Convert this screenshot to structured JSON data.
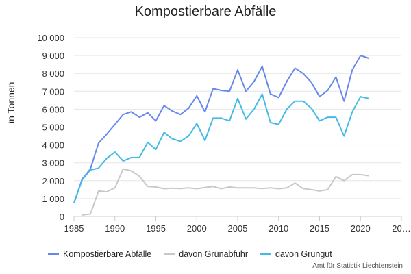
{
  "chart_data": {
    "type": "line",
    "title": "Kompostierbare Abfälle",
    "xlabel": "",
    "ylabel": "in Tonnen",
    "xlim": [
      1985,
      2025
    ],
    "ylim": [
      0,
      10000
    ],
    "x_ticks": [
      "1985",
      "1990",
      "1995",
      "2000",
      "2005",
      "2010",
      "2015",
      "2020",
      "20…"
    ],
    "y_ticks": [
      "0",
      "1 000",
      "2 000",
      "3 000",
      "4 000",
      "5 000",
      "6 000",
      "7 000",
      "8 000",
      "9 000",
      "10 000"
    ],
    "grid": true,
    "legend_position": "bottom-left",
    "series": [
      {
        "name": "Kompostierbare Abfälle",
        "color": "#6688ee",
        "x": [
          1985,
          1986,
          1987,
          1988,
          1989,
          1990,
          1991,
          1992,
          1993,
          1994,
          1995,
          1996,
          1997,
          1998,
          1999,
          2000,
          2001,
          2002,
          2003,
          2004,
          2005,
          2006,
          2007,
          2008,
          2009,
          2010,
          2011,
          2012,
          2013,
          2014,
          2015,
          2016,
          2017,
          2018,
          2019,
          2020,
          2021
        ],
        "values": [
          750,
          2100,
          2650,
          4100,
          4600,
          5150,
          5700,
          5850,
          5550,
          5800,
          5350,
          6200,
          5900,
          5700,
          6050,
          6750,
          5850,
          7150,
          7050,
          7000,
          8200,
          7000,
          7550,
          8400,
          6850,
          6650,
          7550,
          8300,
          8000,
          7500,
          6700,
          7050,
          7800,
          6450,
          8200,
          9000,
          8850
        ]
      },
      {
        "name": "davon Grünabfuhr",
        "color": "#c8c8c8",
        "x": [
          1986,
          1987,
          1988,
          1989,
          1990,
          1991,
          1992,
          1993,
          1994,
          1995,
          1996,
          1997,
          1998,
          1999,
          2000,
          2001,
          2002,
          2003,
          2004,
          2005,
          2006,
          2007,
          2008,
          2009,
          2010,
          2011,
          2012,
          2013,
          2014,
          2015,
          2016,
          2017,
          2018,
          2019,
          2020,
          2021
        ],
        "values": [
          80,
          130,
          1420,
          1380,
          1600,
          2650,
          2550,
          2250,
          1680,
          1650,
          1550,
          1580,
          1560,
          1600,
          1550,
          1620,
          1680,
          1550,
          1650,
          1600,
          1600,
          1600,
          1560,
          1600,
          1550,
          1600,
          1870,
          1560,
          1500,
          1420,
          1500,
          2230,
          2000,
          2340,
          2340,
          2280
        ]
      },
      {
        "name": "davon Grüngut",
        "color": "#44bbe6",
        "x": [
          1985,
          1986,
          1987,
          1988,
          1989,
          1990,
          1991,
          1992,
          1993,
          1994,
          1995,
          1996,
          1997,
          1998,
          1999,
          2000,
          2001,
          2002,
          2003,
          2004,
          2005,
          2006,
          2007,
          2008,
          2009,
          2010,
          2011,
          2012,
          2013,
          2014,
          2015,
          2016,
          2017,
          2018,
          2019,
          2020,
          2021
        ],
        "values": [
          750,
          2050,
          2600,
          2700,
          3250,
          3600,
          3100,
          3300,
          3300,
          4150,
          3750,
          4700,
          4350,
          4200,
          4500,
          5200,
          4250,
          5500,
          5500,
          5350,
          6600,
          5450,
          6000,
          6850,
          5250,
          5150,
          6000,
          6450,
          6450,
          6050,
          5350,
          5550,
          5550,
          4500,
          5850,
          6700,
          6600
        ]
      }
    ]
  },
  "credits": "Amt für Statistik Liechtenstein"
}
